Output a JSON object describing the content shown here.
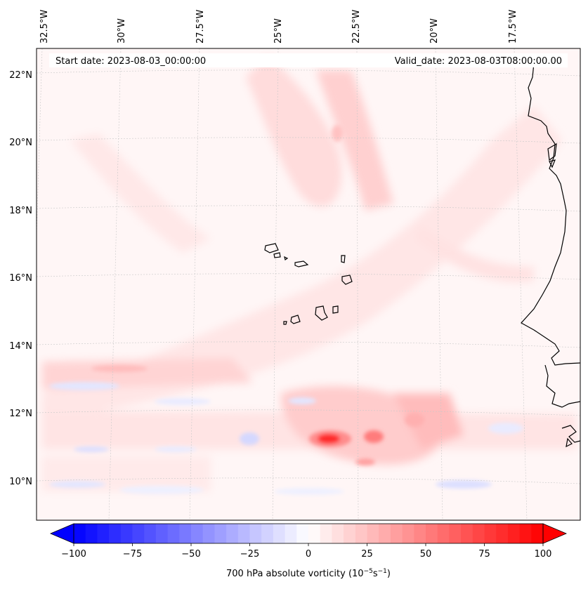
{
  "map": {
    "start_date_label": "Start date: 2023-08-03_00:00:00",
    "valid_date_label": "Valid_date: 2023-08-03T08:00:00.00",
    "longitude_labels": [
      "32.5°W",
      "30°W",
      "27.5°W",
      "25°W",
      "22.5°W",
      "20°W",
      "17.5°W"
    ],
    "latitude_labels": [
      "22°N",
      "20°N",
      "18°N",
      "16°N",
      "14°N",
      "12°N",
      "10°N"
    ],
    "field": "700 hPa absolute vorticity",
    "colors": {
      "ocean_tint": "#fff4f4",
      "positive": "#ff0000",
      "negative": "#0000ff",
      "coast": "#000000",
      "grid": "#b0b0b0"
    }
  },
  "colorbar": {
    "label_prefix": "700 hPa absolute vorticity (10",
    "label_exp1": "−5",
    "label_mid": "s",
    "label_exp2": "−1",
    "label_suffix": ")",
    "ticks": [
      "−100",
      "−75",
      "−50",
      "−25",
      "0",
      "25",
      "50",
      "75",
      "100"
    ],
    "min": -100,
    "max": 100,
    "levels": 40
  }
}
